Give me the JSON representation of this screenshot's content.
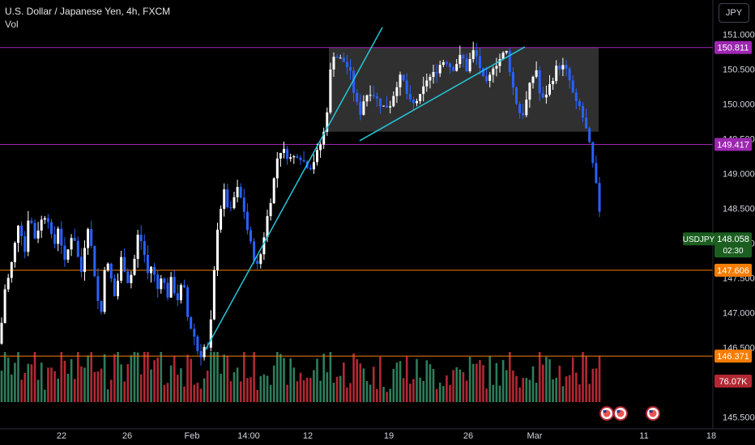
{
  "header": {
    "title": "U.S. Dollar / Japanese Yen, 4h, FXCM",
    "volume_label": "Vol",
    "currency_button": "JPY"
  },
  "chart_data": {
    "type": "candlestick",
    "symbol": "USDJPY",
    "timeframe": "4h",
    "source": "FXCM",
    "price_axis": {
      "ticks": [
        "151.000",
        "150.500",
        "150.000",
        "149.500",
        "149.000",
        "148.500",
        "148.000",
        "147.500",
        "147.000",
        "146.500",
        "145.500"
      ],
      "ylim": [
        145.44,
        151.2
      ]
    },
    "time_axis": {
      "ticks": [
        "22",
        "26",
        "Feb",
        "14:00",
        "12",
        "19",
        "26",
        "Mar",
        "11",
        "18"
      ]
    },
    "price_labels": [
      {
        "name": "level-150811",
        "value": "150.811",
        "color": "#9c27b0"
      },
      {
        "name": "level-149417",
        "value": "149.417",
        "color": "#9c27b0"
      },
      {
        "name": "level-147606",
        "value": "147.606",
        "color": "#f57c00"
      },
      {
        "name": "level-146371",
        "value": "146.371",
        "color": "#f57c00"
      }
    ],
    "current": {
      "symbol": "USDJPY",
      "price": "148.058",
      "countdown": "02:30",
      "color": "#1b5e20"
    },
    "volume_label": {
      "value": "76.07K",
      "color": "#b22833"
    },
    "horizontal_lines": [
      {
        "price": 150.811,
        "color": "#9c27b0"
      },
      {
        "price": 149.417,
        "color": "#9c27b0"
      },
      {
        "price": 147.606,
        "color": "#f57c00"
      },
      {
        "price": 146.371,
        "color": "#f57c00"
      }
    ],
    "range_box": {
      "price_top": 150.811,
      "price_bottom": 149.6,
      "color": "#6b6b6b"
    },
    "trendlines_color": "#26c6da",
    "up_color": "#ffffff",
    "down_color": "#2962ff",
    "vol_up_color": "#2e7d5b",
    "vol_down_color": "#b22833",
    "event_icon_count": 3
  }
}
